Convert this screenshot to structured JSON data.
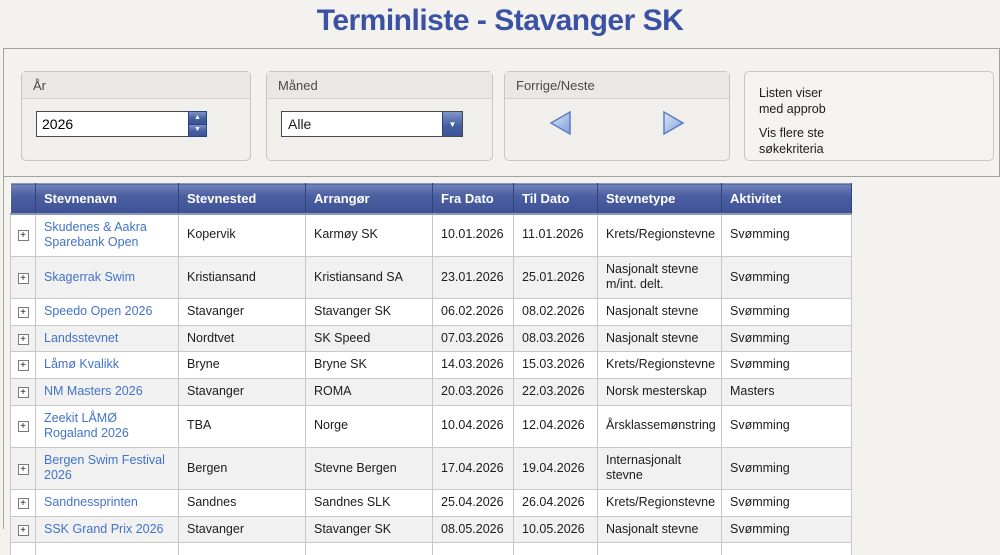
{
  "page": {
    "title": "Terminliste - Stavanger SK"
  },
  "colors": {
    "title_blue": "#3b51a3",
    "header_blue": "#425a9c",
    "link_blue": "#4273c8",
    "control_blue": "#3a539b"
  },
  "icons": {
    "expand": "+",
    "spinner_up": "▲",
    "spinner_down": "▼",
    "select_arrow": "▼",
    "prev_arrow": "left-triangle",
    "next_arrow": "right-triangle"
  },
  "filters": {
    "year": {
      "label": "År",
      "value": "2026"
    },
    "month": {
      "label": "Måned",
      "value": "Alle"
    },
    "nav": {
      "label": "Forrige/Neste"
    },
    "info": {
      "lines": [
        "Listen viser",
        "med approb",
        "Vis flere ste",
        "søkekriteria"
      ]
    }
  },
  "table": {
    "columns": [
      "Stevnenavn",
      "Stevnested",
      "Arrangør",
      "Fra Dato",
      "Til Dato",
      "Stevnetype",
      "Aktivitet"
    ],
    "rows": [
      {
        "name": "Skudenes & Aakra Sparebank Open",
        "place": "Kopervik",
        "organizer": "Karmøy SK",
        "from": "10.01.2026",
        "to": "11.01.2026",
        "type": "Krets/Regionstevne",
        "activity": "Svømming"
      },
      {
        "name": "Skagerrak Swim",
        "place": "Kristiansand",
        "organizer": "Kristiansand SA",
        "from": "23.01.2026",
        "to": "25.01.2026",
        "type": "Nasjonalt stevne m/int. delt.",
        "activity": "Svømming"
      },
      {
        "name": "Speedo Open 2026",
        "place": "Stavanger",
        "organizer": "Stavanger SK",
        "from": "06.02.2026",
        "to": "08.02.2026",
        "type": "Nasjonalt stevne",
        "activity": "Svømming"
      },
      {
        "name": "Landsstevnet",
        "place": "Nordtvet",
        "organizer": "SK Speed",
        "from": "07.03.2026",
        "to": "08.03.2026",
        "type": "Nasjonalt stevne",
        "activity": "Svømming"
      },
      {
        "name": "Låmø Kvalikk",
        "place": "Bryne",
        "organizer": "Bryne SK",
        "from": "14.03.2026",
        "to": "15.03.2026",
        "type": "Krets/Regionstevne",
        "activity": "Svømming"
      },
      {
        "name": "NM Masters 2026",
        "place": "Stavanger",
        "organizer": "ROMA",
        "from": "20.03.2026",
        "to": "22.03.2026",
        "type": "Norsk mesterskap",
        "activity": "Masters"
      },
      {
        "name": "Zeekit LÅMØ Rogaland 2026",
        "place": "TBA",
        "organizer": "Norge",
        "from": "10.04.2026",
        "to": "12.04.2026",
        "type": "Årsklassemønstring",
        "activity": "Svømming"
      },
      {
        "name": "Bergen Swim Festival 2026",
        "place": "Bergen",
        "organizer": "Stevne Bergen",
        "from": "17.04.2026",
        "to": "19.04.2026",
        "type": "Internasjonalt stevne",
        "activity": "Svømming"
      },
      {
        "name": "Sandnessprinten",
        "place": "Sandnes",
        "organizer": "Sandnes SLK",
        "from": "25.04.2026",
        "to": "26.04.2026",
        "type": "Krets/Regionstevne",
        "activity": "Svømming"
      },
      {
        "name": "SSK Grand Prix 2026",
        "place": "Stavanger",
        "organizer": "Stavanger SK",
        "from": "08.05.2026",
        "to": "10.05.2026",
        "type": "Nasjonalt stevne",
        "activity": "Svømming"
      }
    ]
  }
}
